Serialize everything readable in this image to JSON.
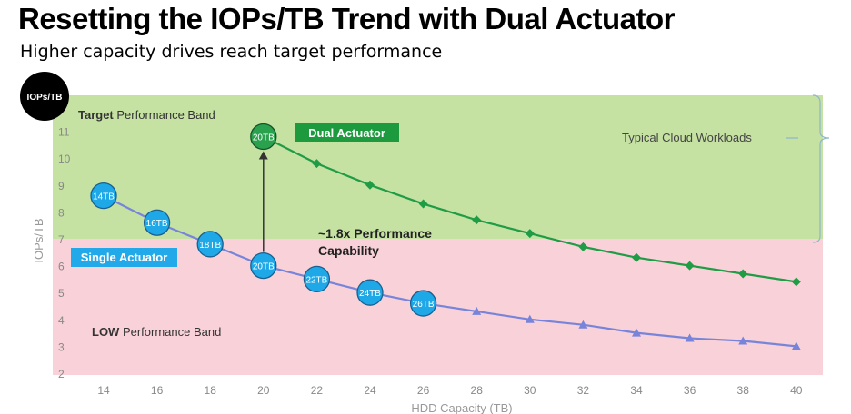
{
  "header": {
    "title": "Resetting the IOPs/TB Trend with Dual Actuator",
    "subtitle": "Higher capacity drives reach target performance"
  },
  "badge": {
    "label": "IOPs/TB"
  },
  "bands": {
    "target": {
      "bold": "Target",
      "rest": " Performance Band",
      "color": "#c5e2a3"
    },
    "low": {
      "bold": "LOW",
      "rest": " Performance Band",
      "color": "#f9d2d9"
    },
    "workloads": "Typical Cloud Workloads"
  },
  "annotations": {
    "dual_actuator": "Dual Actuator",
    "single_actuator": "Single Actuator",
    "gain_line1": "~1.8x Performance",
    "gain_line2": "Capability"
  },
  "colors": {
    "dual": "#1f9c45",
    "single": "#7884d9",
    "bubble": "#1ea8e8",
    "dual_label_bg": "#1c9a3d",
    "single_label_bg": "#21a9e9"
  },
  "chart_data": {
    "type": "line",
    "xlabel": "HDD Capacity (TB)",
    "ylabel": "IOPs/TB",
    "x_ticks": [
      14,
      16,
      18,
      20,
      22,
      24,
      26,
      28,
      30,
      32,
      34,
      36,
      38,
      40
    ],
    "y_ticks": [
      2,
      3,
      4,
      5,
      6,
      7,
      8,
      9,
      10,
      11
    ],
    "xlim": [
      13,
      41
    ],
    "ylim": [
      2,
      12
    ],
    "band_threshold": 7,
    "series": [
      {
        "key": "single",
        "x": [
          14,
          16,
          18,
          20,
          22,
          24,
          26,
          28,
          30,
          32,
          34,
          36,
          38,
          40
        ],
        "y": [
          8.6,
          7.6,
          6.8,
          6.0,
          5.5,
          5.0,
          4.6,
          4.3,
          4.0,
          3.8,
          3.5,
          3.3,
          3.2,
          3.0
        ],
        "labels": [
          "14TB",
          "16TB",
          "18TB",
          "20TB",
          "22TB",
          "24TB",
          "26TB",
          "",
          "",
          "",
          "",
          "",
          "",
          ""
        ]
      },
      {
        "key": "dual",
        "x": [
          20,
          22,
          24,
          26,
          28,
          30,
          32,
          34,
          36,
          38,
          40
        ],
        "y": [
          10.8,
          9.8,
          9.0,
          8.3,
          7.7,
          7.2,
          6.7,
          6.3,
          6.0,
          5.7,
          5.4
        ],
        "labels": [
          "20TB",
          "",
          "",
          "",
          "",
          "",
          "",
          "",
          "",
          "",
          ""
        ]
      }
    ]
  }
}
